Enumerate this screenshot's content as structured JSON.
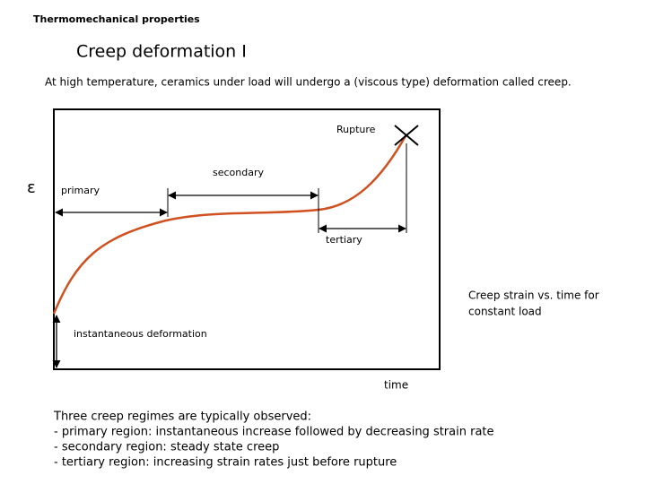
{
  "header": {
    "section": "Thermomechanical properties",
    "title": "Creep deformation I",
    "subtitle": "At high temperature, ceramics under load will undergo a (viscous type) deformation called creep."
  },
  "diagram": {
    "y_axis_label": "ε",
    "x_axis_label": "time",
    "rupture": "Rupture",
    "primary": "primary",
    "secondary": "secondary",
    "tertiary": "tertiary",
    "instantaneous": "instantaneous deformation",
    "caption": [
      "Creep strain vs. time for",
      "constant load"
    ]
  },
  "notes": [
    "Three creep regimes are typically observed:",
    "- primary region: instantaneous increase followed by decreasing strain rate",
    "- secondary region: steady state creep",
    "- tertiary region: increasing strain rates just before rupture"
  ]
}
